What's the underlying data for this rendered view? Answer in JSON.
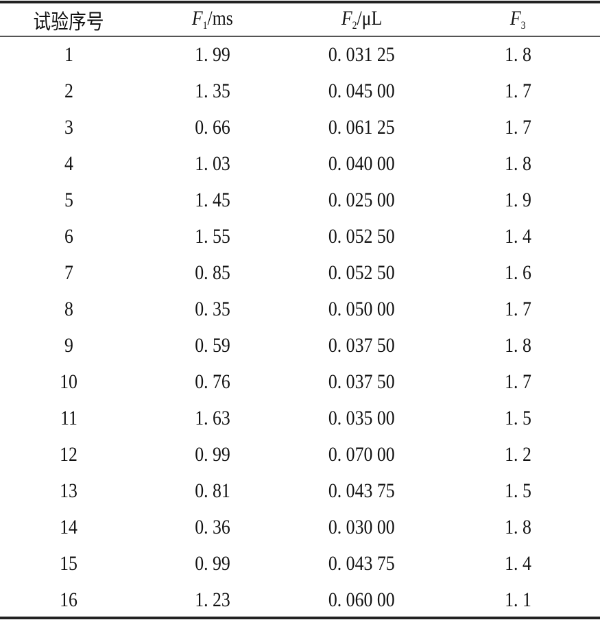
{
  "table": {
    "headers": {
      "col1": "试验序号",
      "col2": {
        "var": "F",
        "sub": "1",
        "unit": "/ms"
      },
      "col3": {
        "var": "F",
        "sub": "2",
        "unit": "/μL"
      },
      "col4": {
        "var": "F",
        "sub": "3",
        "unit": ""
      }
    },
    "rows": [
      [
        "1",
        "1. 99",
        "0. 031 25",
        "1. 8"
      ],
      [
        "2",
        "1. 35",
        "0. 045 00",
        "1. 7"
      ],
      [
        "3",
        "0. 66",
        "0. 061 25",
        "1. 7"
      ],
      [
        "4",
        "1. 03",
        "0. 040 00",
        "1. 8"
      ],
      [
        "5",
        "1. 45",
        "0. 025 00",
        "1. 9"
      ],
      [
        "6",
        "1. 55",
        "0. 052 50",
        "1. 4"
      ],
      [
        "7",
        "0. 85",
        "0. 052 50",
        "1. 6"
      ],
      [
        "8",
        "0. 35",
        "0. 050 00",
        "1. 7"
      ],
      [
        "9",
        "0. 59",
        "0. 037 50",
        "1. 8"
      ],
      [
        "10",
        "0. 76",
        "0. 037 50",
        "1. 7"
      ],
      [
        "11",
        "1. 63",
        "0. 035 00",
        "1. 5"
      ],
      [
        "12",
        "0. 99",
        "0. 070 00",
        "1. 2"
      ],
      [
        "13",
        "0. 81",
        "0. 043 75",
        "1. 5"
      ],
      [
        "14",
        "0. 36",
        "0. 030 00",
        "1. 8"
      ],
      [
        "15",
        "0. 99",
        "0. 043 75",
        "1. 4"
      ],
      [
        "16",
        "1. 23",
        "0. 060 00",
        "1. 1"
      ]
    ]
  }
}
